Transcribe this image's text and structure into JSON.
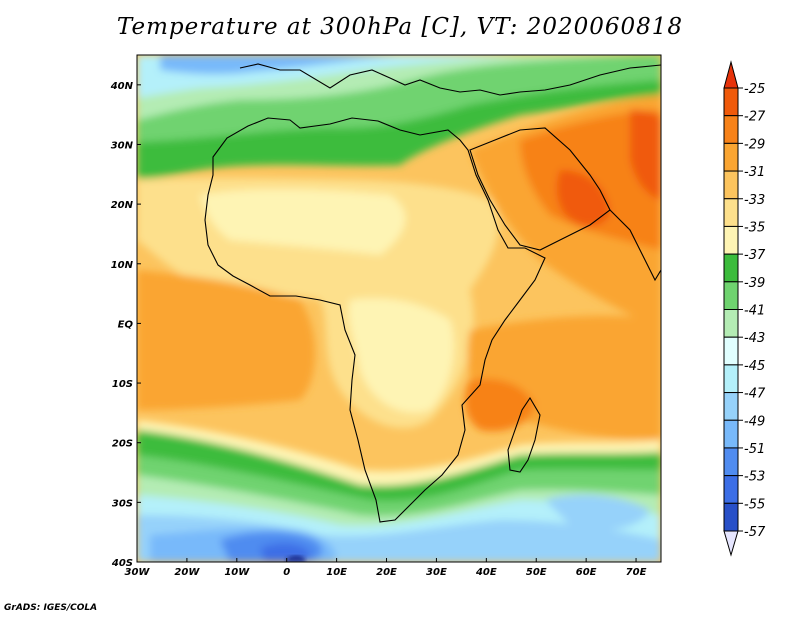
{
  "title": "Temperature at 300hPa [C], VT: 2020060818",
  "credit": "GrADS: IGES/COLA",
  "map": {
    "lon_range": [
      -30,
      75
    ],
    "lat_range": [
      -40,
      45
    ],
    "lon_ticks": [
      {
        "value": -30,
        "label": "30W"
      },
      {
        "value": -20,
        "label": "20W"
      },
      {
        "value": -10,
        "label": "10W"
      },
      {
        "value": 0,
        "label": "0"
      },
      {
        "value": 10,
        "label": "10E"
      },
      {
        "value": 20,
        "label": "20E"
      },
      {
        "value": 30,
        "label": "30E"
      },
      {
        "value": 40,
        "label": "40E"
      },
      {
        "value": 50,
        "label": "50E"
      },
      {
        "value": 60,
        "label": "60E"
      },
      {
        "value": 70,
        "label": "70E"
      }
    ],
    "lat_ticks": [
      {
        "value": 40,
        "label": "40N"
      },
      {
        "value": 30,
        "label": "30N"
      },
      {
        "value": 20,
        "label": "20N"
      },
      {
        "value": 10,
        "label": "10N"
      },
      {
        "value": 0,
        "label": "EQ"
      },
      {
        "value": -10,
        "label": "10S"
      },
      {
        "value": -20,
        "label": "20S"
      },
      {
        "value": -30,
        "label": "30S"
      },
      {
        "value": -40,
        "label": "40S"
      }
    ]
  },
  "colorbar": {
    "levels": [
      {
        "label": "-25",
        "color": "#f05a0a"
      },
      {
        "label": "-27",
        "color": "#f78219"
      },
      {
        "label": "-29",
        "color": "#faa532"
      },
      {
        "label": "-31",
        "color": "#fcc45e"
      },
      {
        "label": "-33",
        "color": "#fde08c"
      },
      {
        "label": "-35",
        "color": "#fef4b4"
      },
      {
        "label": "-37",
        "color": "#3cbc3c"
      },
      {
        "label": "-39",
        "color": "#6fd36f"
      },
      {
        "label": "-41",
        "color": "#b4ecb4"
      },
      {
        "label": "-43",
        "color": "#e1ffff"
      },
      {
        "label": "-45",
        "color": "#b4f0fa"
      },
      {
        "label": "-47",
        "color": "#96d2fa"
      },
      {
        "label": "-49",
        "color": "#78b9fa"
      },
      {
        "label": "-51",
        "color": "#508cf0"
      },
      {
        "label": "-53",
        "color": "#3c6ee6"
      },
      {
        "label": "-55",
        "color": "#2850c8"
      },
      {
        "label": "-57",
        "color": "#1e3296"
      }
    ],
    "top_arrow_color": "#e6320a",
    "bottom_arrow_color": "#e6e6ff"
  }
}
